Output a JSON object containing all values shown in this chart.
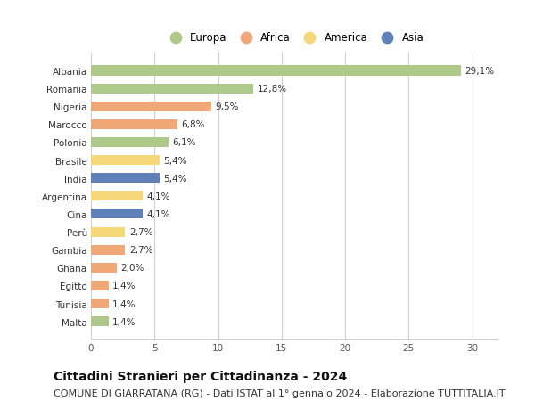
{
  "countries": [
    "Albania",
    "Romania",
    "Nigeria",
    "Marocco",
    "Polonia",
    "Brasile",
    "India",
    "Argentina",
    "Cina",
    "Perù",
    "Gambia",
    "Ghana",
    "Egitto",
    "Tunisia",
    "Malta"
  ],
  "values": [
    29.1,
    12.8,
    9.5,
    6.8,
    6.1,
    5.4,
    5.4,
    4.1,
    4.1,
    2.7,
    2.7,
    2.0,
    1.4,
    1.4,
    1.4
  ],
  "labels": [
    "29,1%",
    "12,8%",
    "9,5%",
    "6,8%",
    "6,1%",
    "5,4%",
    "5,4%",
    "4,1%",
    "4,1%",
    "2,7%",
    "2,7%",
    "2,0%",
    "1,4%",
    "1,4%",
    "1,4%"
  ],
  "continents": [
    "Europa",
    "Europa",
    "Africa",
    "Africa",
    "Europa",
    "America",
    "Asia",
    "America",
    "Asia",
    "America",
    "Africa",
    "Africa",
    "Africa",
    "Africa",
    "Europa"
  ],
  "colors": {
    "Europa": "#aec98a",
    "Africa": "#f0a878",
    "America": "#f5d878",
    "Asia": "#6080b8"
  },
  "xlim": [
    0,
    32
  ],
  "xticks": [
    0,
    5,
    10,
    15,
    20,
    25,
    30
  ],
  "title": "Cittadini Stranieri per Cittadinanza - 2024",
  "subtitle": "COMUNE DI GIARRATANA (RG) - Dati ISTAT al 1° gennaio 2024 - Elaborazione TUTTITALIA.IT",
  "background_color": "#ffffff",
  "grid_color": "#d0d0d0",
  "bar_height": 0.55,
  "title_fontsize": 10,
  "subtitle_fontsize": 8,
  "label_fontsize": 7.5,
  "tick_fontsize": 7.5,
  "legend_fontsize": 8.5,
  "legend_order": [
    "Europa",
    "Africa",
    "America",
    "Asia"
  ]
}
